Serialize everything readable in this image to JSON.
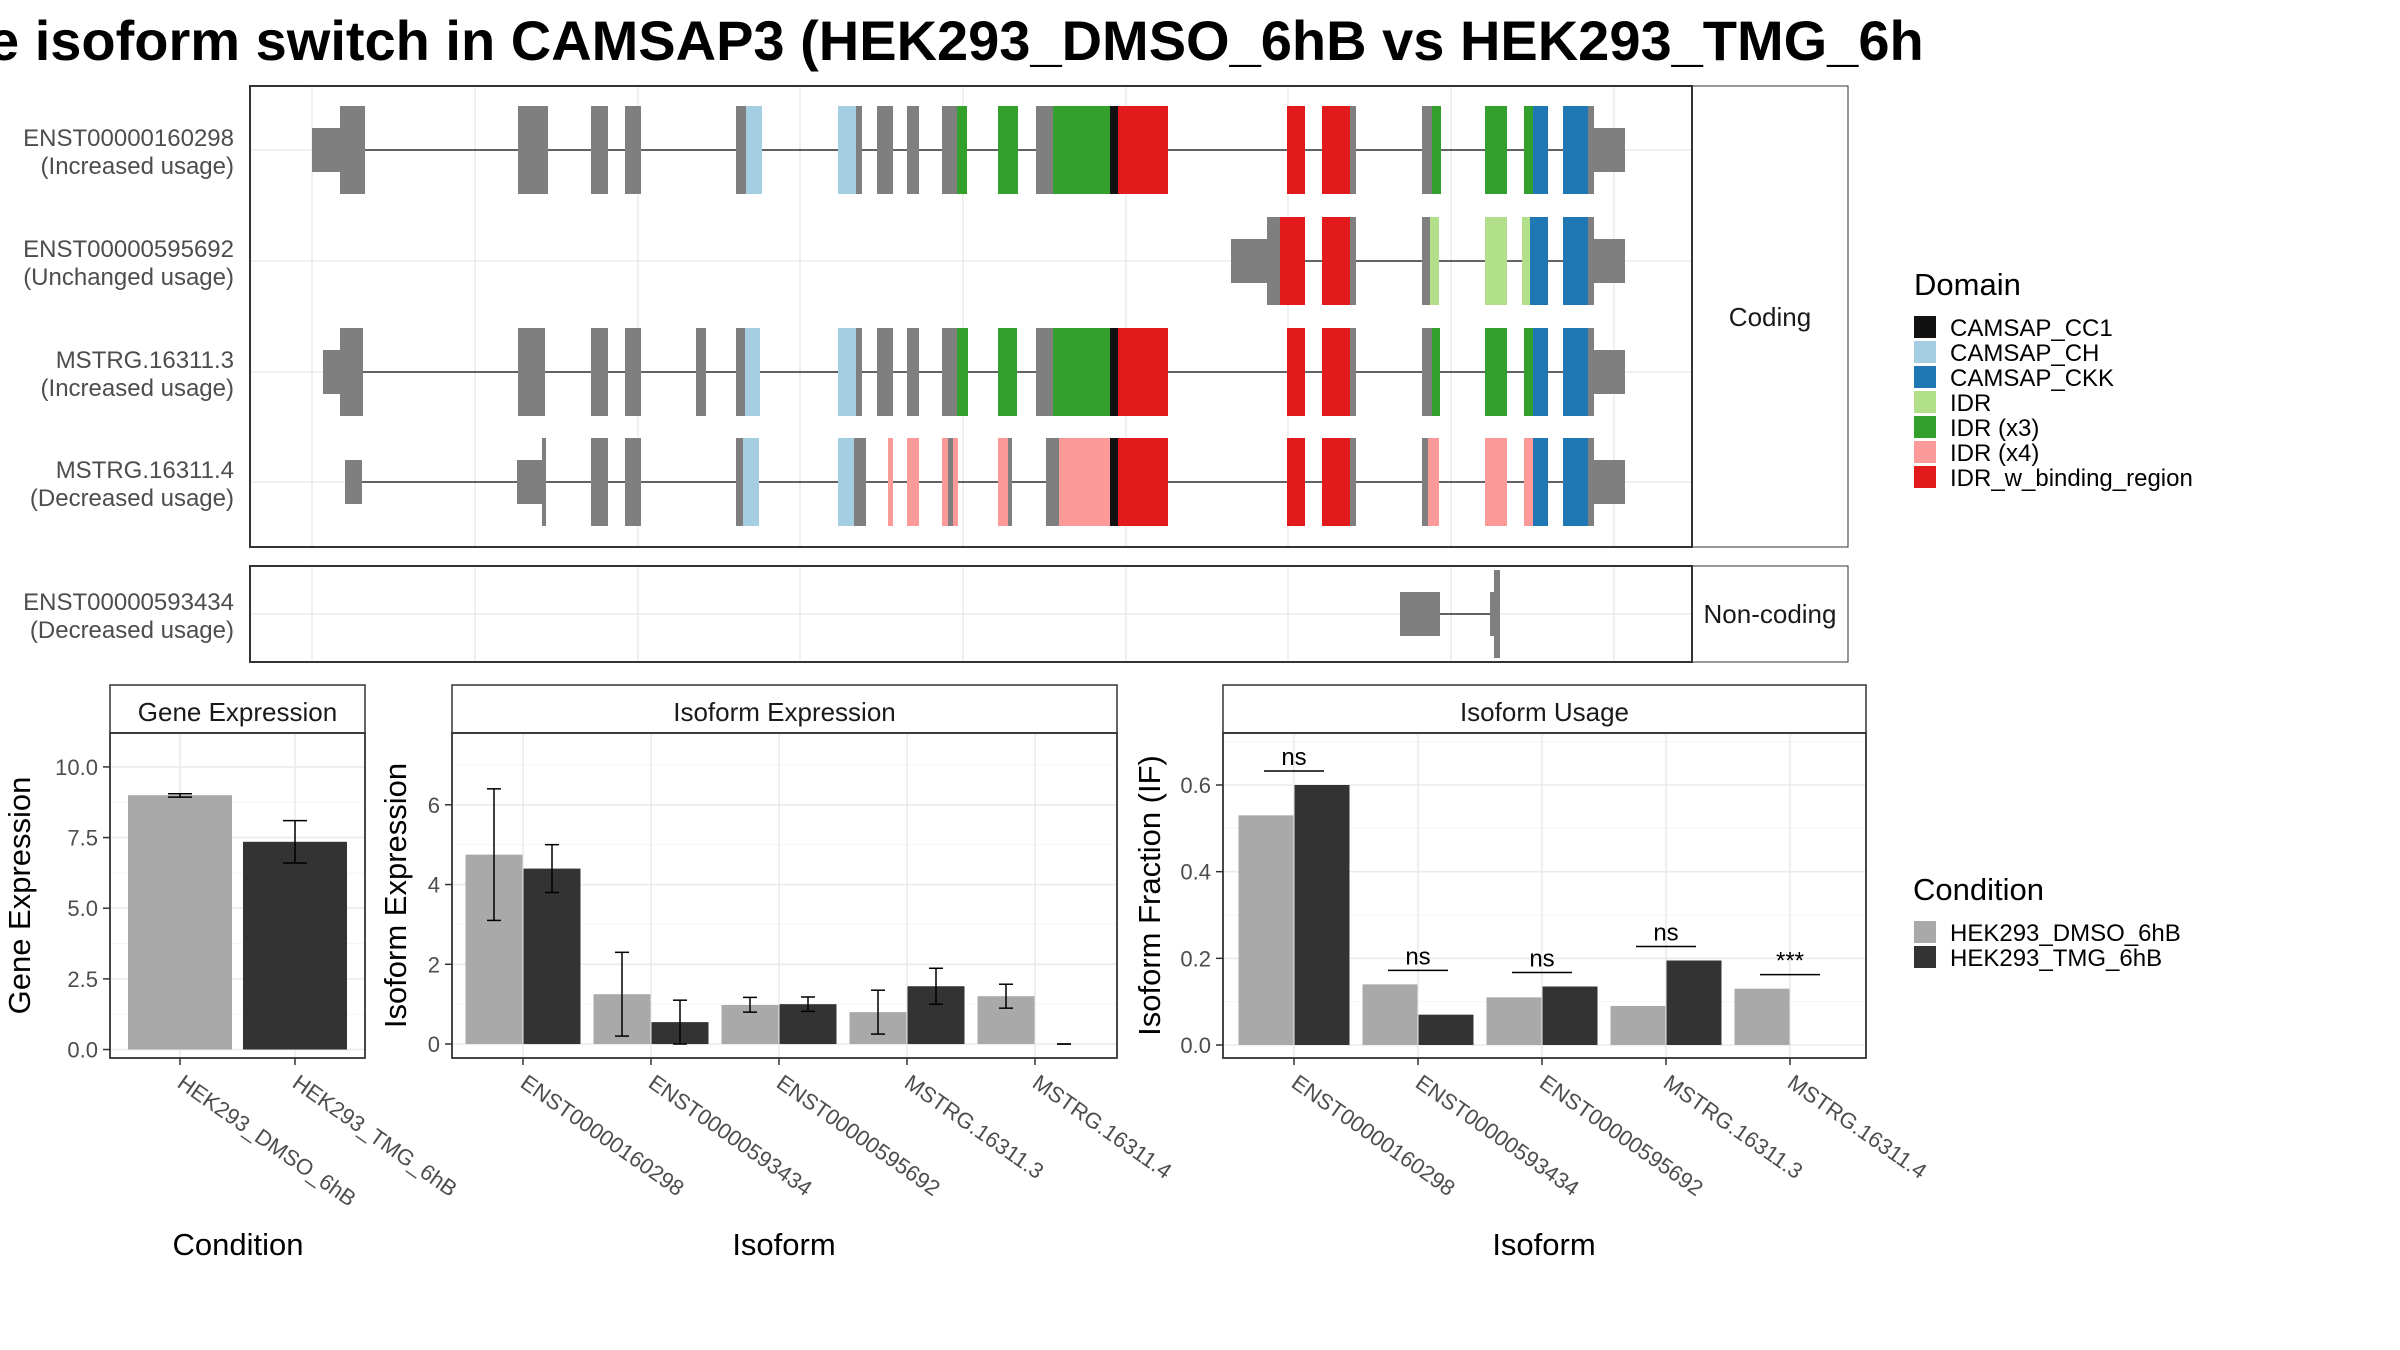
{
  "title": "e isoform switch in CAMSAP3 (HEK293_DMSO_6hB vs HEK293_TMG_6h",
  "colors": {
    "dmso": "#a9a9a9",
    "tmg": "#333333",
    "exon": "#7f7f7f",
    "CAMSAP_CC1": "#111111",
    "CAMSAP_CH": "#a6cee3",
    "CAMSAP_CKK": "#1f78b4",
    "IDR": "#b2df8a",
    "IDR (x3)": "#33a02c",
    "IDR (x4)": "#fb9a99",
    "IDR_w_binding_region": "#e31a1c"
  },
  "structure": {
    "facets": [
      "Coding",
      "Non-coding"
    ],
    "transcripts": [
      {
        "id": "ENST00000160298",
        "usage": "(Increased usage)",
        "facet": "Coding"
      },
      {
        "id": "ENST00000595692",
        "usage": "(Unchanged usage)",
        "facet": "Coding"
      },
      {
        "id": "MSTRG.16311.3",
        "usage": "(Increased usage)",
        "facet": "Coding"
      },
      {
        "id": "MSTRG.16311.4",
        "usage": "(Decreased usage)",
        "facet": "Coding"
      },
      {
        "id": "ENST00000593434",
        "usage": "(Decreased usage)",
        "facet": "Non-coding"
      }
    ]
  },
  "legend": {
    "domain_title": "Domain",
    "domain_items": [
      "CAMSAP_CC1",
      "CAMSAP_CH",
      "CAMSAP_CKK",
      "IDR",
      "IDR (x3)",
      "IDR (x4)",
      "IDR_w_binding_region"
    ],
    "condition_title": "Condition",
    "condition_items": [
      "HEK293_DMSO_6hB",
      "HEK293_TMG_6hB"
    ]
  },
  "chart_data": [
    {
      "type": "bar",
      "title": "Gene Expression",
      "xlabel": "Condition",
      "ylabel": "Gene Expression",
      "ylim": [
        -0.3,
        11.2
      ],
      "yticks": [
        "0.0",
        "2.5",
        "5.0",
        "7.5",
        "10.0"
      ],
      "categories": [
        "HEK293_DMSO_6hB",
        "HEK293_TMG_6hB"
      ],
      "values": [
        9.0,
        7.35
      ],
      "errors": [
        [
          8.93,
          9.05
        ],
        [
          6.6,
          8.1
        ]
      ]
    },
    {
      "type": "bar",
      "title": "Isoform Expression",
      "xlabel": "Isoform",
      "ylabel": "Isoform Expression",
      "ylim": [
        -0.35,
        7.8
      ],
      "yticks": [
        "0",
        "2",
        "4",
        "6"
      ],
      "categories": [
        "ENST00000160298",
        "ENST00000593434",
        "ENST00000595692",
        "MSTRG.16311.3",
        "MSTRG.16311.4"
      ],
      "series": [
        {
          "name": "HEK293_DMSO_6hB",
          "values": [
            4.75,
            1.25,
            0.98,
            0.8,
            1.2
          ],
          "errors": [
            [
              3.1,
              6.4
            ],
            [
              0.2,
              2.3
            ],
            [
              0.8,
              1.17
            ],
            [
              0.25,
              1.35
            ],
            [
              0.9,
              1.5
            ]
          ]
        },
        {
          "name": "HEK293_TMG_6hB",
          "values": [
            4.4,
            0.55,
            1.0,
            1.45,
            0.0
          ],
          "errors": [
            [
              3.8,
              5.0
            ],
            [
              0.0,
              1.1
            ],
            [
              0.82,
              1.18
            ],
            [
              1.0,
              1.9
            ],
            [
              0.0,
              0.0
            ]
          ]
        }
      ]
    },
    {
      "type": "bar",
      "title": "Isoform Usage",
      "xlabel": "Isoform",
      "ylabel": "Isoform Fraction (IF)",
      "ylim": [
        -0.03,
        0.72
      ],
      "yticks": [
        "0.0",
        "0.2",
        "0.4",
        "0.6"
      ],
      "categories": [
        "ENST00000160298",
        "ENST00000593434",
        "ENST00000595692",
        "MSTRG.16311.3",
        "MSTRG.16311.4"
      ],
      "series": [
        {
          "name": "HEK293_DMSO_6hB",
          "values": [
            0.53,
            0.14,
            0.11,
            0.09,
            0.13
          ]
        },
        {
          "name": "HEK293_TMG_6hB",
          "values": [
            0.6,
            0.07,
            0.135,
            0.195,
            0.0
          ]
        }
      ],
      "significance": [
        "ns",
        "ns",
        "ns",
        "ns",
        "***"
      ]
    }
  ]
}
